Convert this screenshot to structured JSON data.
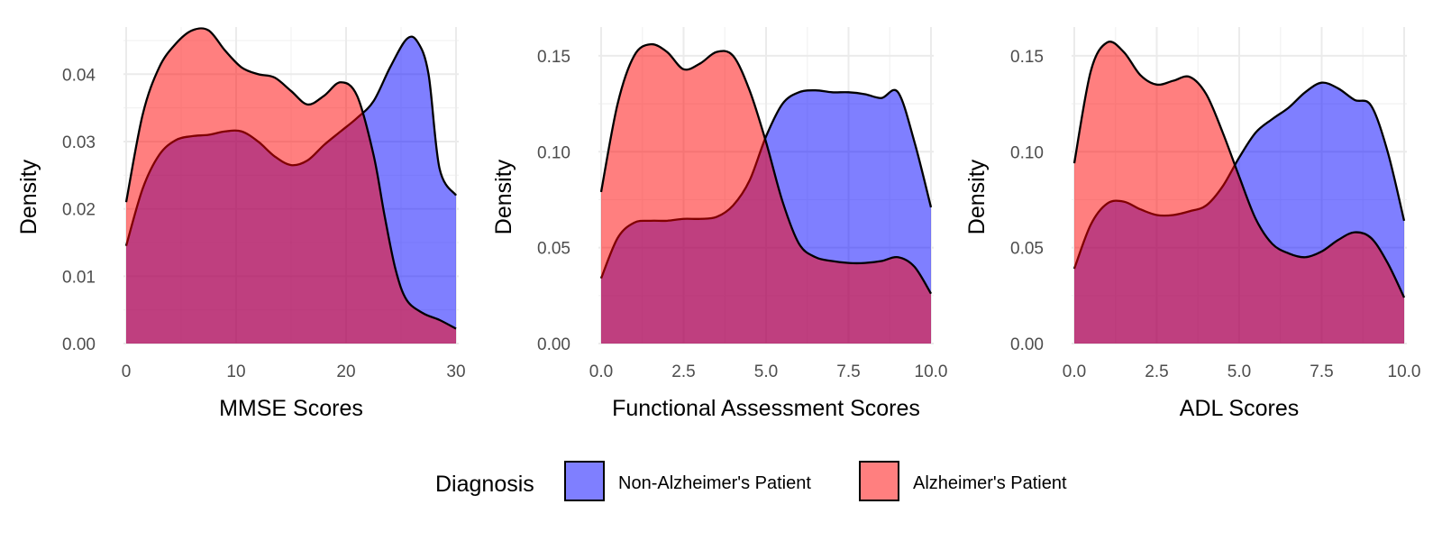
{
  "chart_data": [
    {
      "type": "area",
      "xlabel": "MMSE Scores",
      "ylabel": "Density",
      "xlim": [
        0,
        30
      ],
      "ylim": [
        0,
        0.047
      ],
      "x_ticks": [
        0,
        10,
        20,
        30
      ],
      "x_tick_labels": [
        "0",
        "10",
        "20",
        "30"
      ],
      "y_ticks": [
        0,
        0.01,
        0.02,
        0.03,
        0.04
      ],
      "y_tick_labels": [
        "0.00",
        "0.01",
        "0.02",
        "0.03",
        "0.04"
      ],
      "grid": true,
      "series": [
        {
          "name": "Non-Alzheimer's Patient",
          "x": [
            0,
            1.5,
            3,
            4.5,
            6,
            7.5,
            9,
            10.5,
            12,
            13.5,
            15,
            16.5,
            18,
            19.5,
            21,
            22.5,
            24,
            25.5,
            26.5,
            27.5,
            28.5,
            30
          ],
          "y": [
            0.0145,
            0.023,
            0.028,
            0.0302,
            0.0308,
            0.031,
            0.0315,
            0.0315,
            0.03,
            0.0278,
            0.0265,
            0.0272,
            0.0295,
            0.0315,
            0.0335,
            0.036,
            0.041,
            0.0452,
            0.0448,
            0.04,
            0.026,
            0.022
          ]
        },
        {
          "name": "Alzheimer's Patient",
          "x": [
            0,
            1.5,
            3,
            4.5,
            6,
            7.5,
            9,
            10.5,
            12,
            13.5,
            15,
            16.5,
            18,
            19.5,
            21,
            22.5,
            23.5,
            24.5,
            25.5,
            27,
            28.5,
            30
          ],
          "y": [
            0.021,
            0.034,
            0.041,
            0.0445,
            0.0465,
            0.0465,
            0.0435,
            0.041,
            0.04,
            0.0395,
            0.0375,
            0.0355,
            0.0368,
            0.0388,
            0.0368,
            0.028,
            0.019,
            0.011,
            0.0065,
            0.0045,
            0.0035,
            0.0022
          ]
        }
      ]
    },
    {
      "type": "area",
      "xlabel": "Functional Assessment Scores",
      "ylabel": "Density",
      "xlim": [
        0,
        10
      ],
      "ylim": [
        0,
        0.165
      ],
      "x_ticks": [
        0,
        2.5,
        5,
        7.5,
        10
      ],
      "x_tick_labels": [
        "0.0",
        "2.5",
        "5.0",
        "7.5",
        "10.0"
      ],
      "y_ticks": [
        0,
        0.05,
        0.1,
        0.15
      ],
      "y_tick_labels": [
        "0.00",
        "0.05",
        "0.10",
        "0.15"
      ],
      "grid": true,
      "series": [
        {
          "name": "Non-Alzheimer's Patient",
          "x": [
            0,
            0.5,
            1,
            1.5,
            2,
            2.5,
            3,
            3.5,
            4,
            4.5,
            5,
            5.5,
            6,
            6.5,
            7,
            7.5,
            8,
            8.5,
            9,
            9.5,
            10
          ],
          "y": [
            0.034,
            0.055,
            0.063,
            0.064,
            0.064,
            0.065,
            0.065,
            0.066,
            0.072,
            0.085,
            0.108,
            0.125,
            0.131,
            0.132,
            0.131,
            0.131,
            0.13,
            0.128,
            0.131,
            0.105,
            0.071
          ]
        },
        {
          "name": "Alzheimer's Patient",
          "x": [
            0,
            0.5,
            1,
            1.5,
            2,
            2.5,
            3,
            3.5,
            4,
            4.5,
            5,
            5.5,
            6,
            6.5,
            7,
            7.5,
            8,
            8.5,
            9,
            9.5,
            10
          ],
          "y": [
            0.079,
            0.125,
            0.15,
            0.156,
            0.152,
            0.143,
            0.146,
            0.152,
            0.15,
            0.132,
            0.105,
            0.074,
            0.052,
            0.045,
            0.043,
            0.042,
            0.042,
            0.043,
            0.045,
            0.04,
            0.026
          ]
        }
      ]
    },
    {
      "type": "area",
      "xlabel": "ADL Scores",
      "ylabel": "Density",
      "xlim": [
        0,
        10
      ],
      "ylim": [
        0,
        0.165
      ],
      "x_ticks": [
        0,
        2.5,
        5,
        7.5,
        10
      ],
      "x_tick_labels": [
        "0.0",
        "2.5",
        "5.0",
        "7.5",
        "10.0"
      ],
      "y_ticks": [
        0,
        0.05,
        0.1,
        0.15
      ],
      "y_tick_labels": [
        "0.00",
        "0.05",
        "0.10",
        "0.15"
      ],
      "grid": true,
      "series": [
        {
          "name": "Non-Alzheimer's Patient",
          "x": [
            0,
            0.5,
            1,
            1.5,
            2,
            2.5,
            3,
            3.5,
            4,
            4.5,
            5,
            5.5,
            6,
            6.5,
            7,
            7.5,
            8,
            8.5,
            9,
            9.5,
            10
          ],
          "y": [
            0.039,
            0.062,
            0.073,
            0.074,
            0.07,
            0.067,
            0.067,
            0.069,
            0.072,
            0.082,
            0.097,
            0.11,
            0.117,
            0.123,
            0.131,
            0.136,
            0.133,
            0.127,
            0.124,
            0.1,
            0.064
          ]
        },
        {
          "name": "Alzheimer's Patient",
          "x": [
            0,
            0.5,
            1,
            1.5,
            2,
            2.5,
            3,
            3.5,
            4,
            4.5,
            5,
            5.5,
            6,
            6.5,
            7,
            7.5,
            8,
            8.5,
            9,
            9.5,
            10
          ],
          "y": [
            0.094,
            0.142,
            0.157,
            0.152,
            0.14,
            0.135,
            0.137,
            0.139,
            0.13,
            0.11,
            0.087,
            0.065,
            0.052,
            0.047,
            0.045,
            0.048,
            0.054,
            0.058,
            0.055,
            0.042,
            0.024
          ]
        }
      ]
    }
  ],
  "legend": {
    "title": "Diagnosis",
    "position": "bottom",
    "items": [
      {
        "label": "Non-Alzheimer's Patient",
        "color": "#7f7fff"
      },
      {
        "label": "Alzheimer's Patient",
        "color": "#ff7f7f"
      }
    ]
  },
  "colors": {
    "non_alzheimers": "#0000ff",
    "alzheimers": "#ff0000",
    "fill_opacity": 0.5
  }
}
